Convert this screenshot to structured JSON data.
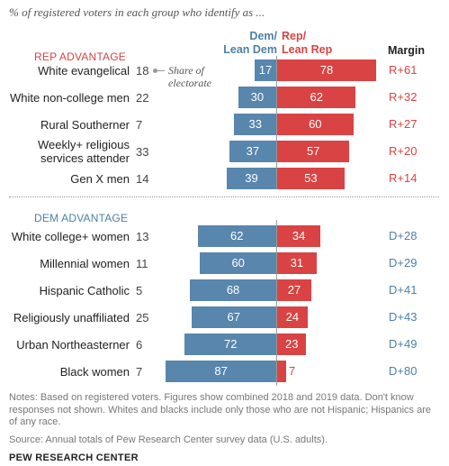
{
  "subtitle": "% of registered voters in each group who identify as ...",
  "headers": {
    "dem": "Dem/\nLean Dem",
    "rep": "Rep/\nLean Rep",
    "margin": "Margin"
  },
  "annotation": "Share of\nelectorate",
  "notes": "Notes: Based on registered voters. Figures show combined 2018 and 2019 data. Don't know responses not shown. Whites and blacks include only those who are not Hispanic; Hispanics are of any race.",
  "source": "Source: Annual totals of Pew Research Center survey data (U.S. adults).",
  "brand": "PEW RESEARCH CENTER",
  "colors": {
    "dem": "#5886ad",
    "rep": "#d94343",
    "dem_text": "#4e7fa8"
  },
  "chart_data": {
    "type": "bar",
    "subtitle": "% of registered voters in each group who identify as ...",
    "series": [
      {
        "name": "Dem/Lean Dem"
      },
      {
        "name": "Rep/Lean Rep"
      }
    ],
    "groups": [
      {
        "name": "REP ADVANTAGE",
        "rows": [
          {
            "label": "White evangelical",
            "share": 18,
            "dem": 17,
            "rep": 78,
            "margin": "R+61"
          },
          {
            "label": "White non-college men",
            "share": 22,
            "dem": 30,
            "rep": 62,
            "margin": "R+32"
          },
          {
            "label": "Rural Southerner",
            "share": 7,
            "dem": 33,
            "rep": 60,
            "margin": "R+27"
          },
          {
            "label": "Weekly+ religious\nservices attender",
            "share": 33,
            "dem": 37,
            "rep": 57,
            "margin": "R+20"
          },
          {
            "label": "Gen X men",
            "share": 14,
            "dem": 39,
            "rep": 53,
            "margin": "R+14"
          }
        ]
      },
      {
        "name": "DEM ADVANTAGE",
        "rows": [
          {
            "label": "White college+ women",
            "share": 13,
            "dem": 62,
            "rep": 34,
            "margin": "D+28"
          },
          {
            "label": "Millennial women",
            "share": 11,
            "dem": 60,
            "rep": 31,
            "margin": "D+29"
          },
          {
            "label": "Hispanic Catholic",
            "share": 5,
            "dem": 68,
            "rep": 27,
            "margin": "D+41"
          },
          {
            "label": "Religiously unaffiliated",
            "share": 25,
            "dem": 67,
            "rep": 24,
            "margin": "D+43"
          },
          {
            "label": "Urban Northeasterner",
            "share": 6,
            "dem": 72,
            "rep": 23,
            "margin": "D+49"
          },
          {
            "label": "Black women",
            "share": 7,
            "dem": 87,
            "rep": 7,
            "margin": "D+80"
          }
        ]
      }
    ]
  }
}
